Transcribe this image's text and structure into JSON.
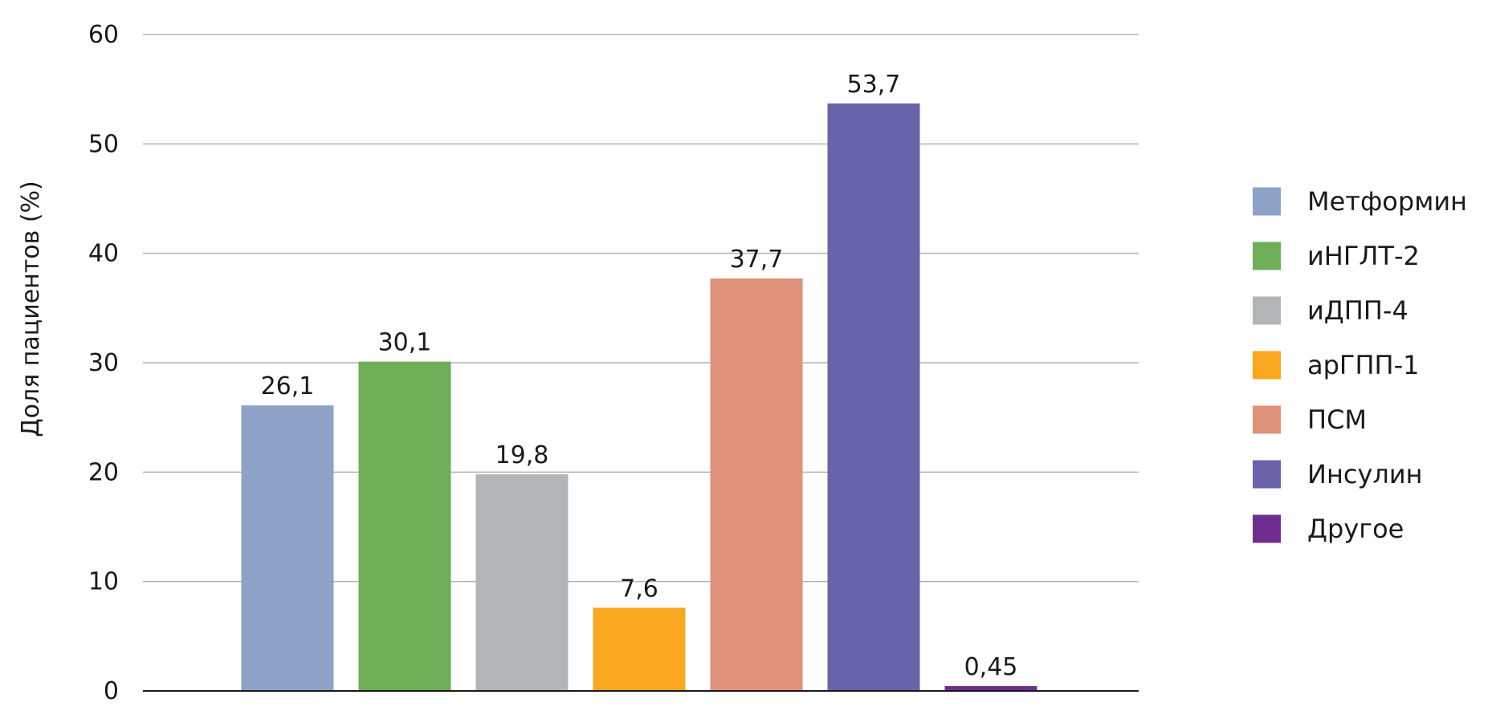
{
  "chart_data": {
    "type": "bar",
    "ylabel": "Доля пациентов (%)",
    "ylim": [
      0,
      60
    ],
    "yticks": [
      0,
      10,
      20,
      30,
      40,
      50,
      60
    ],
    "grid": true,
    "legend_position": "right",
    "series": [
      {
        "name": "Метформин",
        "value": 26.1,
        "label": "26,1",
        "color": "#8EA2C8"
      },
      {
        "name": "иНГЛТ-2",
        "value": 30.1,
        "label": "30,1",
        "color": "#6EAF57"
      },
      {
        "name": "иДПП-4",
        "value": 19.8,
        "label": "19,8",
        "color": "#B3B4B6"
      },
      {
        "name": "арГПП-1",
        "value": 7.6,
        "label": "7,6",
        "color": "#F8A71E"
      },
      {
        "name": "ПСМ",
        "value": 37.7,
        "label": "37,7",
        "color": "#DF917A"
      },
      {
        "name": "Инсулин",
        "value": 53.7,
        "label": "53,7",
        "color": "#6863AB"
      },
      {
        "name": "Другое",
        "value": 0.45,
        "label": "0,45",
        "color": "#6F2C91"
      }
    ]
  }
}
